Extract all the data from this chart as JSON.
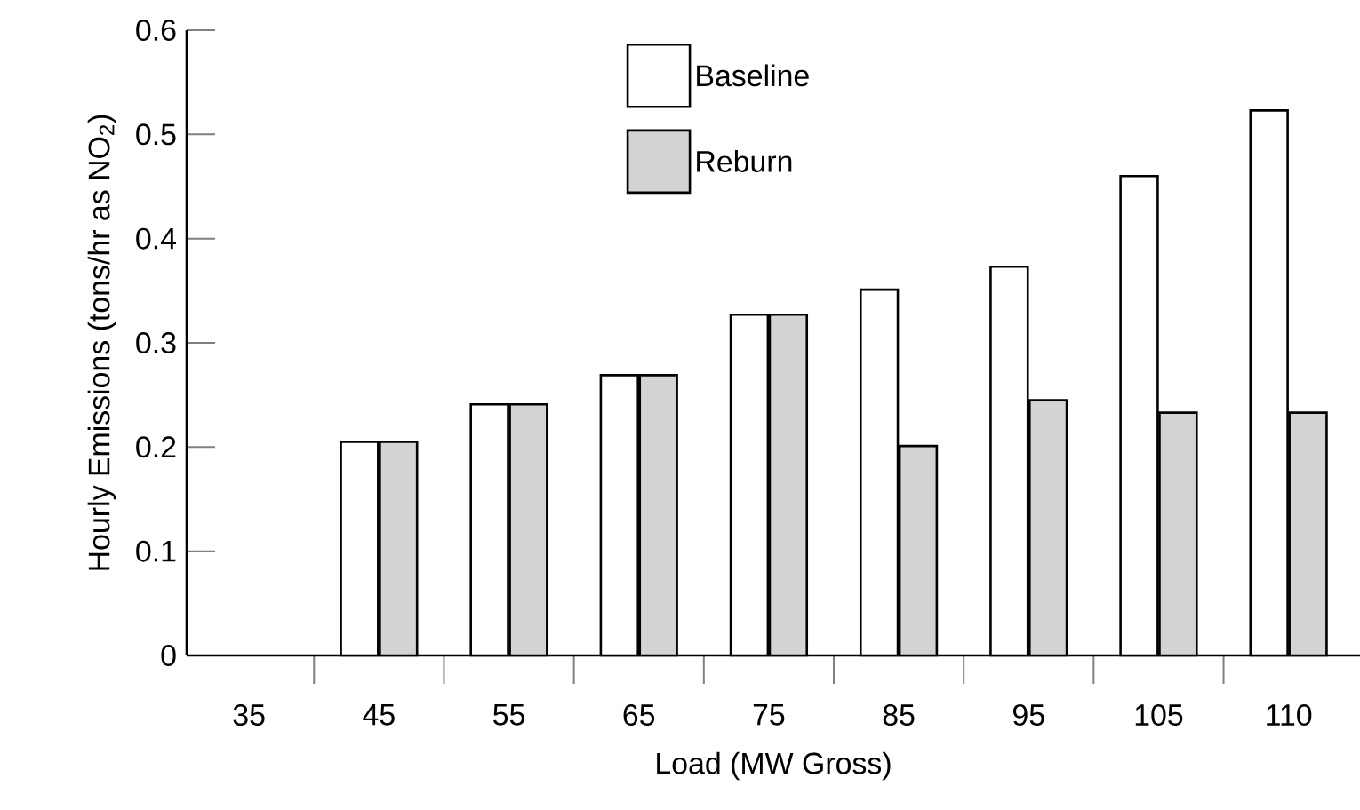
{
  "chart_data": {
    "type": "bar",
    "xlabel": "Load (MW Gross)",
    "ylabel": "Hourly Emissions (tons/hr as NO$_{2}$)",
    "categories": [
      "35",
      "45",
      "55",
      "65",
      "75",
      "85",
      "95",
      "105",
      "110"
    ],
    "series": [
      {
        "name": "Baseline",
        "color": "#ffffff",
        "values": [
          null,
          0.205,
          0.241,
          0.269,
          0.327,
          0.351,
          0.373,
          0.46,
          0.523
        ]
      },
      {
        "name": "Reburn",
        "color": "#d1d3d4",
        "values": [
          null,
          0.205,
          0.241,
          0.269,
          0.327,
          0.201,
          0.245,
          0.233,
          0.233
        ]
      }
    ],
    "ylim": [
      0,
      0.6
    ],
    "yticks": [
      0,
      0.1,
      0.2,
      0.3,
      0.4,
      0.5,
      0.6
    ],
    "legend": "top"
  }
}
